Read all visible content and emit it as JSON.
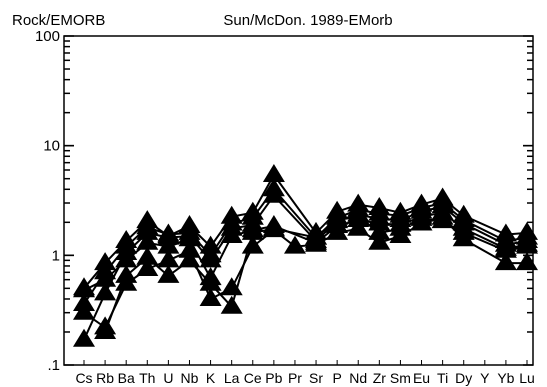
{
  "chart_data": {
    "type": "line",
    "ylabel": "Rock/EMORB",
    "title": "Sun/McDon. 1989-EMorb",
    "y_scale": "log",
    "ylim": [
      0.1,
      100
    ],
    "y_ticks": [
      {
        "value": 100,
        "label": "100"
      },
      {
        "value": 10,
        "label": "10"
      },
      {
        "value": 1,
        "label": "1"
      },
      {
        "value": 0.1,
        "label": ".1"
      }
    ],
    "categories": [
      "Cs",
      "Rb",
      "Ba",
      "Th",
      "U",
      "Nb",
      "K",
      "La",
      "Ce",
      "Pb",
      "Pr",
      "Sr",
      "P",
      "Nd",
      "Zr",
      "Sm",
      "Eu",
      "Ti",
      "Dy",
      "Y",
      "Yb",
      "Lu"
    ],
    "marker": "triangle",
    "grid": false,
    "series": [
      {
        "values": [
          0.5,
          0.85,
          1.35,
          2.05,
          1.5,
          1.85,
          1.2,
          2.25,
          2.45,
          5.4,
          null,
          1.6,
          2.5,
          2.9,
          2.7,
          2.45,
          2.9,
          3.3,
          2.3,
          null,
          1.55,
          1.6
        ]
      },
      {
        "values": [
          0.36,
          0.7,
          1.2,
          1.8,
          1.55,
          1.6,
          1.0,
          1.95,
          2.2,
          4.0,
          null,
          1.45,
          2.2,
          2.6,
          2.4,
          2.3,
          2.7,
          3.0,
          2.1,
          null,
          1.35,
          1.45
        ]
      },
      {
        "values": [
          0.17,
          0.45,
          1.05,
          1.6,
          1.45,
          1.5,
          0.9,
          1.75,
          1.9,
          3.5,
          null,
          1.35,
          2.05,
          2.35,
          2.15,
          2.1,
          2.5,
          2.8,
          1.95,
          null,
          1.25,
          1.35
        ]
      },
      {
        "values": [
          0.48,
          0.6,
          0.9,
          1.3,
          1.2,
          1.4,
          0.62,
          1.5,
          1.7,
          1.85,
          null,
          1.3,
          1.85,
          2.1,
          1.95,
          1.9,
          2.25,
          2.45,
          1.75,
          null,
          1.15,
          1.25
        ]
      },
      {
        "values": [
          0.3,
          0.22,
          0.55,
          0.75,
          0.9,
          1.1,
          0.4,
          0.5,
          1.2,
          1.7,
          1.2,
          1.25,
          1.6,
          1.75,
          1.3,
          1.5,
          1.95,
          2.2,
          1.4,
          null,
          0.85,
          0.85
        ]
      },
      {
        "values": [
          null,
          0.2,
          0.65,
          0.95,
          0.65,
          0.9,
          0.55,
          0.34,
          1.6,
          1.75,
          null,
          1.45,
          2.1,
          2.25,
          1.6,
          1.75,
          2.15,
          2.05,
          1.6,
          null,
          1.1,
          1.2
        ]
      }
    ]
  }
}
